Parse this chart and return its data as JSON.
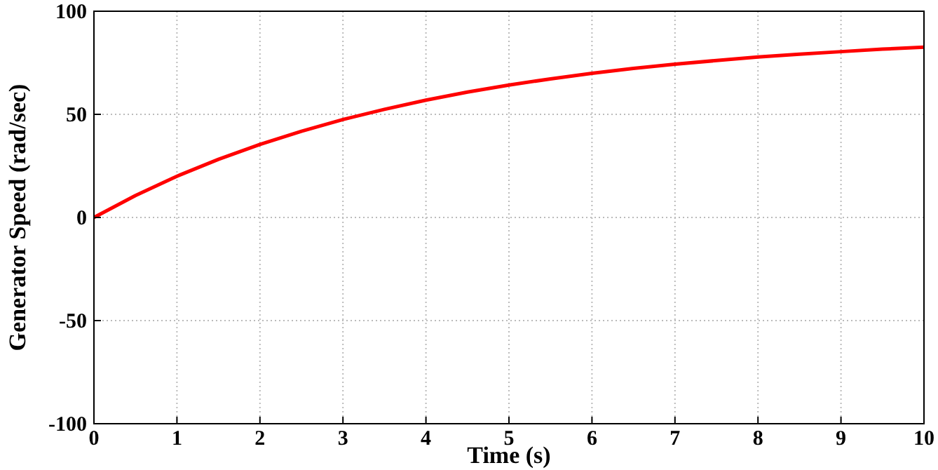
{
  "chart_data": {
    "type": "line",
    "xlabel": "Time (s)",
    "ylabel": "Generator Speed (rad/sec)",
    "x": [
      0,
      0.5,
      1,
      1.5,
      2,
      2.5,
      3,
      3.5,
      4,
      4.5,
      5,
      5.5,
      6,
      6.5,
      7,
      7.5,
      8,
      8.5,
      9,
      9.5,
      10
    ],
    "series": [
      {
        "color": "#ff0000",
        "values": [
          0,
          10.6,
          20,
          28.2,
          35.4,
          41.8,
          47.5,
          52.4,
          56.9,
          60.8,
          64.2,
          67.2,
          69.9,
          72.3,
          74.3,
          76.1,
          77.8,
          79.2,
          80.4,
          81.6,
          82.6
        ]
      }
    ],
    "xlim": [
      0,
      10
    ],
    "xticks": [
      0,
      1,
      2,
      3,
      4,
      5,
      6,
      7,
      8,
      9,
      10
    ],
    "ylim": [
      -100,
      100
    ],
    "yticks": [
      -100,
      -50,
      0,
      50,
      100
    ],
    "grid": true,
    "line_style": "solid",
    "marker": "none"
  }
}
